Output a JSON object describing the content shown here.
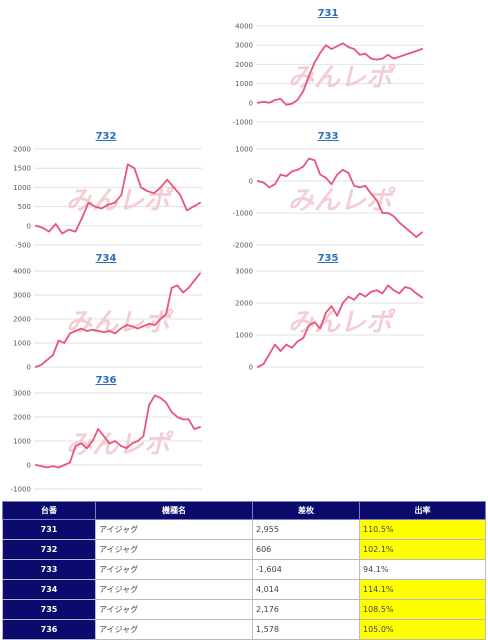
{
  "chart_data": [
    {
      "type": "line",
      "title": "731",
      "yticks": [
        "4000",
        "3000",
        "2000",
        "1000",
        "0",
        "-1000"
      ],
      "ylim": [
        -1000,
        4000
      ],
      "x": [
        1,
        2,
        3,
        4,
        5,
        6,
        7,
        8,
        9,
        10,
        11,
        12,
        13,
        14,
        15,
        16,
        17,
        18,
        19,
        20,
        21,
        22,
        23,
        24,
        25,
        26,
        27,
        28,
        29,
        30
      ],
      "values": [
        0,
        50,
        0,
        150,
        200,
        -100,
        -50,
        150,
        600,
        1400,
        2100,
        2600,
        3000,
        2800,
        2950,
        3100,
        2900,
        2800,
        2500,
        2550,
        2300,
        2250,
        2300,
        2500,
        2300,
        2400,
        2500,
        2600,
        2700,
        2800
      ]
    },
    {
      "type": "line",
      "title": "732",
      "yticks": [
        "2000",
        "1500",
        "1000",
        "500",
        "0",
        "-500"
      ],
      "ylim": [
        -500,
        2000
      ],
      "x": [
        1,
        2,
        3,
        4,
        5,
        6,
        7,
        8,
        9,
        10,
        11,
        12,
        13,
        14,
        15,
        16,
        17,
        18,
        19,
        20,
        21,
        22,
        23,
        24,
        25,
        26
      ],
      "values": [
        0,
        -50,
        -150,
        50,
        -200,
        -100,
        -150,
        200,
        600,
        500,
        450,
        550,
        600,
        800,
        1600,
        1500,
        1000,
        900,
        850,
        1000,
        1200,
        1000,
        800,
        400,
        500,
        600
      ]
    },
    {
      "type": "line",
      "title": "733",
      "yticks": [
        "1000",
        "0",
        "-1000",
        "-2000"
      ],
      "ylim": [
        -2000,
        1000
      ],
      "x": [
        1,
        2,
        3,
        4,
        5,
        6,
        7,
        8,
        9,
        10,
        11,
        12,
        13,
        14,
        15,
        16,
        17,
        18,
        19,
        20,
        21,
        22,
        23,
        24,
        25,
        26,
        27,
        28,
        29,
        30
      ],
      "values": [
        0,
        -50,
        -200,
        -100,
        200,
        150,
        300,
        350,
        450,
        700,
        650,
        200,
        100,
        -100,
        200,
        350,
        250,
        -150,
        -200,
        -150,
        -400,
        -600,
        -1000,
        -1000,
        -1100,
        -1300,
        -1450,
        -1600,
        -1750,
        -1604
      ]
    },
    {
      "type": "line",
      "title": "734",
      "yticks": [
        "4000",
        "3000",
        "2000",
        "1000",
        "0"
      ],
      "ylim": [
        0,
        4000
      ],
      "x": [
        1,
        2,
        3,
        4,
        5,
        6,
        7,
        8,
        9,
        10,
        11,
        12,
        13,
        14,
        15,
        16,
        17,
        18,
        19,
        20,
        21,
        22,
        23,
        24,
        25,
        26,
        27,
        28,
        29,
        30
      ],
      "values": [
        0,
        100,
        300,
        500,
        1100,
        1000,
        1400,
        1500,
        1600,
        1500,
        1550,
        1500,
        1450,
        1500,
        1400,
        1600,
        1750,
        1700,
        1600,
        1700,
        1800,
        1750,
        2000,
        2200,
        3300,
        3400,
        3100,
        3300,
        3600,
        3900
      ]
    },
    {
      "type": "line",
      "title": "735",
      "yticks": [
        "3000",
        "2000",
        "1000",
        "0"
      ],
      "ylim": [
        0,
        3000
      ],
      "x": [
        1,
        2,
        3,
        4,
        5,
        6,
        7,
        8,
        9,
        10,
        11,
        12,
        13,
        14,
        15,
        16,
        17,
        18,
        19,
        20,
        21,
        22,
        23,
        24,
        25,
        26,
        27,
        28,
        29,
        30
      ],
      "values": [
        0,
        100,
        400,
        700,
        500,
        700,
        600,
        800,
        900,
        1300,
        1400,
        1200,
        1700,
        1900,
        1600,
        2000,
        2200,
        2100,
        2300,
        2200,
        2350,
        2400,
        2300,
        2550,
        2400,
        2300,
        2500,
        2450,
        2300,
        2176
      ]
    },
    {
      "type": "line",
      "title": "736",
      "yticks": [
        "3000",
        "2000",
        "1000",
        "0",
        "-1000"
      ],
      "ylim": [
        -1000,
        3000
      ],
      "x": [
        1,
        2,
        3,
        4,
        5,
        6,
        7,
        8,
        9,
        10,
        11,
        12,
        13,
        14,
        15,
        16,
        17,
        18,
        19,
        20,
        21,
        22,
        23,
        24,
        25,
        26,
        27,
        28,
        29,
        30
      ],
      "values": [
        0,
        -50,
        -100,
        -50,
        -100,
        0,
        100,
        800,
        900,
        700,
        1000,
        1500,
        1200,
        900,
        1000,
        800,
        700,
        900,
        1000,
        1200,
        2500,
        2900,
        2800,
        2600,
        2200,
        2000,
        1900,
        1900,
        1500,
        1578
      ]
    }
  ],
  "watermark": "みんレポ",
  "line_color": "#e8557a",
  "table": {
    "headers": [
      "台番",
      "機種名",
      "差枚",
      "出率"
    ],
    "rows": [
      [
        "731",
        "アイジャグ",
        "2,955",
        "110.5%"
      ],
      [
        "732",
        "アイジャグ",
        "606",
        "102.1%"
      ],
      [
        "733",
        "アイジャグ",
        "-1,604",
        "94.1%"
      ],
      [
        "734",
        "アイジャグ",
        "4,014",
        "114.1%"
      ],
      [
        "735",
        "アイジャグ",
        "2,176",
        "108.5%"
      ],
      [
        "736",
        "アイジャグ",
        "1,578",
        "105.0%"
      ]
    ]
  }
}
